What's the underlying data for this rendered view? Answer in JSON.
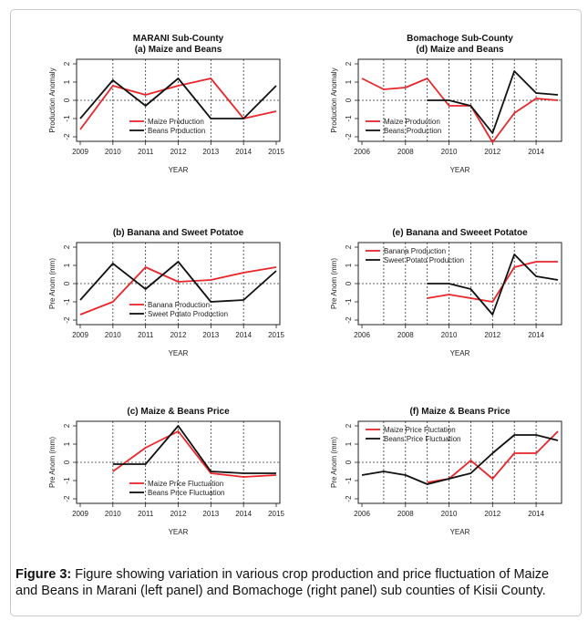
{
  "caption": {
    "label": "Figure 3:",
    "text": " Figure showing variation in various crop production and price fluctuation of Maize and Beans in Marani (left panel) and Bomachoge (right panel) sub counties of Kisii County."
  },
  "colors": {
    "red": "#e8262b",
    "black": "#111111"
  },
  "chart_data": [
    {
      "id": "a",
      "type": "line",
      "title_lines": [
        "MARANI Sub-County",
        "(a) Maize and Beans"
      ],
      "xlabel": "YEAR",
      "ylabel": "Production Anomaly",
      "xlim": [
        2009,
        2015
      ],
      "ylim": [
        -2,
        2
      ],
      "xticks": [
        2009,
        2010,
        2011,
        2012,
        2013,
        2014,
        2015
      ],
      "xgrid": [
        2010,
        2011,
        2012,
        2013,
        2014
      ],
      "yticks": [
        -2,
        -1,
        0,
        1,
        2
      ],
      "legend": "bottom-center",
      "series": [
        {
          "name": "Maize Production",
          "color": "#e8262b",
          "x": [
            2009,
            2010,
            2011,
            2012,
            2013,
            2014,
            2015
          ],
          "y": [
            -1.6,
            0.8,
            0.3,
            0.8,
            1.2,
            -1.0,
            -0.6
          ]
        },
        {
          "name": "Beans Production",
          "color": "#111111",
          "x": [
            2009,
            2010,
            2011,
            2012,
            2013,
            2014,
            2015
          ],
          "y": [
            -1.0,
            1.1,
            -0.3,
            1.2,
            -1.0,
            -1.0,
            0.8
          ]
        }
      ]
    },
    {
      "id": "b",
      "type": "line",
      "title_lines": [
        "(b) Banana and Sweet Potatoe"
      ],
      "xlabel": "YEAR",
      "ylabel": "Pre Anom (mm)",
      "xlim": [
        2009,
        2015
      ],
      "ylim": [
        -2,
        2
      ],
      "xticks": [
        2009,
        2010,
        2011,
        2012,
        2013,
        2014,
        2015
      ],
      "xgrid": [
        2010,
        2011,
        2012,
        2013,
        2014
      ],
      "yticks": [
        -2,
        -1,
        0,
        1,
        2
      ],
      "legend": "bottom-center",
      "series": [
        {
          "name": "Banana Production",
          "color": "#e8262b",
          "x": [
            2009,
            2010,
            2011,
            2012,
            2013,
            2014,
            2015
          ],
          "y": [
            -1.7,
            -1.0,
            0.9,
            0.1,
            0.2,
            0.6,
            0.9
          ]
        },
        {
          "name": "Sweet Potato Production",
          "color": "#111111",
          "x": [
            2009,
            2010,
            2011,
            2012,
            2013,
            2014,
            2015
          ],
          "y": [
            -0.9,
            1.1,
            -0.3,
            1.2,
            -1.0,
            -0.9,
            0.7
          ]
        }
      ]
    },
    {
      "id": "c",
      "type": "line",
      "title_lines": [
        "(c) Maize & Beans Price"
      ],
      "xlabel": "YEAR",
      "ylabel": "Pre Anom (mm)",
      "xlim": [
        2009,
        2015
      ],
      "ylim": [
        -2,
        2
      ],
      "xticks": [
        2009,
        2010,
        2011,
        2012,
        2013,
        2014,
        2015
      ],
      "xgrid": [
        2010,
        2011,
        2012,
        2013,
        2014
      ],
      "yticks": [
        -2,
        -1,
        0,
        1,
        2
      ],
      "legend": "bottom-center",
      "series": [
        {
          "name": "Maize Price Fluctuation",
          "color": "#e8262b",
          "x": [
            2010,
            2011,
            2012,
            2013,
            2014,
            2015
          ],
          "y": [
            -0.5,
            0.8,
            1.7,
            -0.6,
            -0.8,
            -0.7
          ]
        },
        {
          "name": "Beans Price Fluctuation",
          "color": "#111111",
          "x": [
            2010,
            2011,
            2012,
            2013,
            2014,
            2015
          ],
          "y": [
            -0.1,
            -0.1,
            2.0,
            -0.5,
            -0.6,
            -0.6
          ]
        }
      ]
    },
    {
      "id": "d",
      "type": "line",
      "title_lines": [
        "Bomachoge Sub-County",
        "(d) Maize and Beans"
      ],
      "xlabel": "YEAR",
      "ylabel": "Production Anomaly",
      "xlim": [
        2006,
        2015
      ],
      "ylim": [
        -2,
        2
      ],
      "xticks": [
        2006,
        2008,
        2010,
        2012,
        2014
      ],
      "xgrid": [
        2007,
        2008,
        2009,
        2010,
        2011,
        2012,
        2013,
        2014
      ],
      "yticks": [
        -2,
        -1,
        0,
        1,
        2
      ],
      "legend": "bottom-left",
      "series": [
        {
          "name": "Maize Production",
          "color": "#e8262b",
          "x": [
            2006,
            2007,
            2008,
            2009,
            2010,
            2011,
            2012,
            2013,
            2014,
            2015
          ],
          "y": [
            1.2,
            0.6,
            0.7,
            1.2,
            -0.3,
            -0.3,
            -2.3,
            -0.7,
            0.1,
            0.0
          ]
        },
        {
          "name": "Beans Production",
          "color": "#111111",
          "x": [
            2009,
            2010,
            2011,
            2012,
            2013,
            2014,
            2015
          ],
          "y": [
            0.0,
            0.0,
            -0.3,
            -1.8,
            1.6,
            0.4,
            0.3
          ]
        }
      ]
    },
    {
      "id": "e",
      "type": "line",
      "title_lines": [
        "(e) Banana and Sweeet Potatoe"
      ],
      "xlabel": "YEAR",
      "ylabel": "Pre Anom (mm)",
      "xlim": [
        2006,
        2015
      ],
      "ylim": [
        -2,
        2
      ],
      "xticks": [
        2006,
        2008,
        2010,
        2012,
        2014
      ],
      "xgrid": [
        2007,
        2008,
        2009,
        2010,
        2011,
        2012,
        2013,
        2014
      ],
      "yticks": [
        -2,
        -1,
        0,
        1,
        2
      ],
      "legend": "top-left",
      "series": [
        {
          "name": "Banana Production",
          "color": "#e8262b",
          "x": [
            2009,
            2010,
            2011,
            2012,
            2013,
            2014,
            2015
          ],
          "y": [
            -0.8,
            -0.6,
            -0.8,
            -1.0,
            0.9,
            1.2,
            1.2
          ]
        },
        {
          "name": "Sweet Potato Production",
          "color": "#111111",
          "x": [
            2009,
            2010,
            2011,
            2012,
            2013,
            2014,
            2015
          ],
          "y": [
            0.0,
            0.0,
            -0.3,
            -1.7,
            1.6,
            0.4,
            0.2
          ]
        }
      ]
    },
    {
      "id": "f",
      "type": "line",
      "title_lines": [
        "(f) Maize & Beans Price"
      ],
      "xlabel": "YEAR",
      "ylabel": "Pre Anom (mm)",
      "xlim": [
        2006,
        2015
      ],
      "ylim": [
        -2,
        2
      ],
      "xticks": [
        2006,
        2008,
        2010,
        2012,
        2014
      ],
      "xgrid": [
        2007,
        2008,
        2009,
        2010,
        2011,
        2012,
        2013,
        2014
      ],
      "yticks": [
        -2,
        -1,
        0,
        1,
        2
      ],
      "legend": "top-left",
      "series": [
        {
          "name": "Maize Price Fluctation",
          "color": "#e8262b",
          "x": [
            2009,
            2010,
            2011,
            2012,
            2013,
            2014,
            2015
          ],
          "y": [
            -1.1,
            -0.9,
            0.1,
            -0.9,
            0.5,
            0.5,
            1.7
          ]
        },
        {
          "name": "Beans Price Fluctuation",
          "color": "#111111",
          "x": [
            2006,
            2007,
            2008,
            2009,
            2010,
            2011,
            2012,
            2013,
            2014,
            2015
          ],
          "y": [
            -0.7,
            -0.5,
            -0.7,
            -1.2,
            -0.9,
            -0.6,
            0.5,
            1.5,
            1.5,
            1.2
          ]
        }
      ]
    }
  ]
}
